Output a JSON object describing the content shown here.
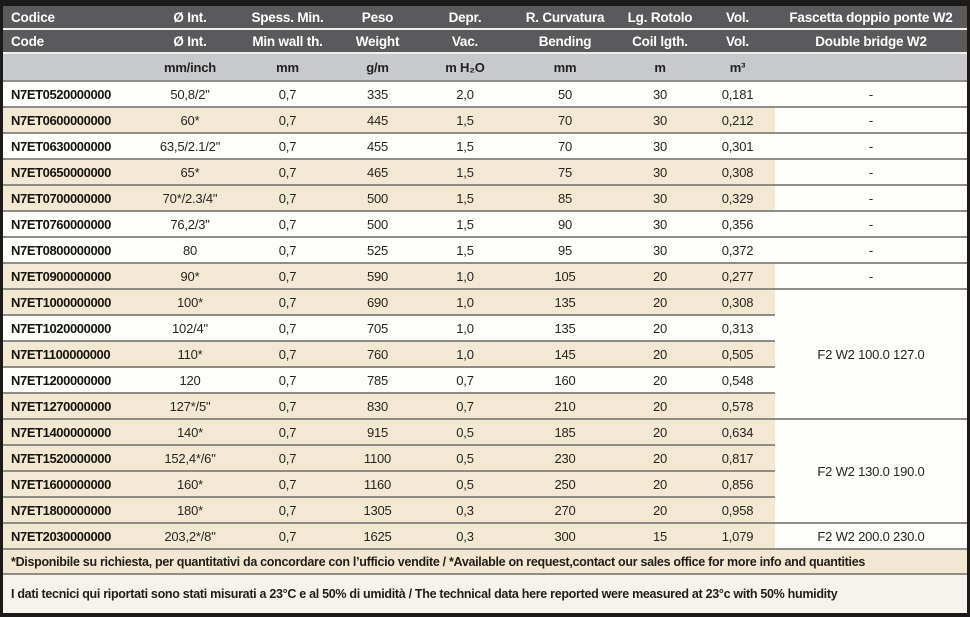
{
  "colors": {
    "frame": "#1b1a18",
    "header-bg": "#5a5a5c",
    "units-bg": "#c8c9cd",
    "row-white": "#fdfdfb",
    "row-beige": "#f3e9d3",
    "sep": "#8e8d87",
    "note1-bg": "#f2e8d2",
    "note2-bg": "#f6f3ec",
    "text": "#272521"
  },
  "table": {
    "header_row1": [
      "Codice",
      "Ø Int.",
      "Spess. Min.",
      "Peso",
      "Depr.",
      "R. Curvatura",
      "Lg. Rotolo",
      "Vol.",
      "Fascetta doppio ponte W2"
    ],
    "header_row2": [
      "Code",
      "Ø Int.",
      "Min wall th.",
      "Weight",
      "Vac.",
      "Bending",
      "Coil lgth.",
      "Vol.",
      "Double bridge W2"
    ],
    "units": [
      "",
      "mm/inch",
      "mm",
      "g/m",
      "m H₂O",
      "mm",
      "m",
      "m³",
      ""
    ],
    "rows": [
      {
        "code": "N7ET0520000000",
        "diameter": "50,8/2\"",
        "wall": "0,7",
        "weight": "335",
        "vac": "2,0",
        "bending": "50",
        "coil": "30",
        "vol": "0,181",
        "bridge": "-",
        "shade": "white"
      },
      {
        "code": "N7ET0600000000",
        "diameter": "60*",
        "wall": "0,7",
        "weight": "445",
        "vac": "1,5",
        "bending": "70",
        "coil": "30",
        "vol": "0,212",
        "bridge": "-",
        "shade": "beige"
      },
      {
        "code": "N7ET0630000000",
        "diameter": "63,5/2.1/2\"",
        "wall": "0,7",
        "weight": "455",
        "vac": "1,5",
        "bending": "70",
        "coil": "30",
        "vol": "0,301",
        "bridge": "-",
        "shade": "white"
      },
      {
        "code": "N7ET0650000000",
        "diameter": "65*",
        "wall": "0,7",
        "weight": "465",
        "vac": "1,5",
        "bending": "75",
        "coil": "30",
        "vol": "0,308",
        "bridge": "-",
        "shade": "beige"
      },
      {
        "code": "N7ET0700000000",
        "diameter": "70*/2.3/4\"",
        "wall": "0,7",
        "weight": "500",
        "vac": "1,5",
        "bending": "85",
        "coil": "30",
        "vol": "0,329",
        "bridge": "-",
        "shade": "beige"
      },
      {
        "code": "N7ET0760000000",
        "diameter": "76,2/3\"",
        "wall": "0,7",
        "weight": "500",
        "vac": "1,5",
        "bending": "90",
        "coil": "30",
        "vol": "0,356",
        "bridge": "-",
        "shade": "white"
      },
      {
        "code": "N7ET0800000000",
        "diameter": "80",
        "wall": "0,7",
        "weight": "525",
        "vac": "1,5",
        "bending": "95",
        "coil": "30",
        "vol": "0,372",
        "bridge": "-",
        "shade": "white"
      },
      {
        "code": "N7ET0900000000",
        "diameter": "90*",
        "wall": "0,7",
        "weight": "590",
        "vac": "1,0",
        "bending": "105",
        "coil": "20",
        "vol": "0,277",
        "bridge": "-",
        "shade": "beige"
      },
      {
        "code": "N7ET1000000000",
        "diameter": "100*",
        "wall": "0,7",
        "weight": "690",
        "vac": "1,0",
        "bending": "135",
        "coil": "20",
        "vol": "0,308",
        "shade": "beige"
      },
      {
        "code": "N7ET1020000000",
        "diameter": "102/4\"",
        "wall": "0,7",
        "weight": "705",
        "vac": "1,0",
        "bending": "135",
        "coil": "20",
        "vol": "0,313",
        "shade": "white"
      },
      {
        "code": "N7ET1100000000",
        "diameter": "110*",
        "wall": "0,7",
        "weight": "760",
        "vac": "1,0",
        "bending": "145",
        "coil": "20",
        "vol": "0,505",
        "shade": "beige"
      },
      {
        "code": "N7ET1200000000",
        "diameter": "120",
        "wall": "0,7",
        "weight": "785",
        "vac": "0,7",
        "bending": "160",
        "coil": "20",
        "vol": "0,548",
        "shade": "white"
      },
      {
        "code": "N7ET1270000000",
        "diameter": "127*/5\"",
        "wall": "0,7",
        "weight": "830",
        "vac": "0,7",
        "bending": "210",
        "coil": "20",
        "vol": "0,578",
        "shade": "beige"
      },
      {
        "code": "N7ET1400000000",
        "diameter": "140*",
        "wall": "0,7",
        "weight": "915",
        "vac": "0,5",
        "bending": "185",
        "coil": "20",
        "vol": "0,634",
        "shade": "beige"
      },
      {
        "code": "N7ET1520000000",
        "diameter": "152,4*/6\"",
        "wall": "0,7",
        "weight": "1100",
        "vac": "0,5",
        "bending": "230",
        "coil": "20",
        "vol": "0,817",
        "shade": "beige"
      },
      {
        "code": "N7ET1600000000",
        "diameter": "160*",
        "wall": "0,7",
        "weight": "1160",
        "vac": "0,5",
        "bending": "250",
        "coil": "20",
        "vol": "0,856",
        "shade": "beige"
      },
      {
        "code": "N7ET1800000000",
        "diameter": "180*",
        "wall": "0,7",
        "weight": "1305",
        "vac": "0,3",
        "bending": "270",
        "coil": "20",
        "vol": "0,958",
        "shade": "beige"
      },
      {
        "code": "N7ET2030000000",
        "diameter": "203,2*/8\"",
        "wall": "0,7",
        "weight": "1625",
        "vac": "0,3",
        "bending": "300",
        "coil": "15",
        "vol": "1,079",
        "shade": "beige"
      }
    ],
    "bridge_groups": [
      {
        "start": 8,
        "span": 5,
        "label": "F2 W2 100.0 127.0"
      },
      {
        "start": 13,
        "span": 4,
        "label": "F2 W2 130.0 190.0"
      },
      {
        "start": 17,
        "span": 1,
        "label": "F2 W2 200.0 230.0"
      }
    ]
  },
  "notes": {
    "availability": "*Disponibile su richiesta, per quantitativi da concordare con l’ufficio vendite / *Available on request,contact our sales office for more info and quantities",
    "measurement": "I dati tecnici qui riportati sono stati misurati a 23°C e al 50% di umidità / The technical data here reported were measured at 23°c with 50% humidity"
  }
}
